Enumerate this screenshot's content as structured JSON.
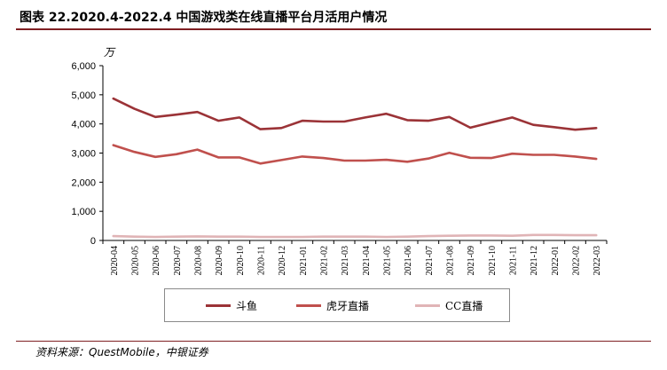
{
  "header": {
    "title": "图表 22.2020.4-2022.4 中国游戏类在线直播平台月活用户情况"
  },
  "footer": {
    "source": "资料来源：QuestMobile，中银证券"
  },
  "colors": {
    "douyu": "#9b3337",
    "huya": "#c0504d",
    "cc": "#e0b4b6",
    "accent": "#7f1f22"
  },
  "chart_data": {
    "type": "line",
    "unit": "万",
    "categories": [
      "2020-04",
      "2020-05",
      "2020-06",
      "2020-07",
      "2020-08",
      "2020-09",
      "2020-10",
      "2020-11",
      "2020-12",
      "2021-01",
      "2021-02",
      "2021-03",
      "2021-04",
      "2021-05",
      "2021-06",
      "2021-07",
      "2021-08",
      "2021-09",
      "2021-10",
      "2021-11",
      "2021-12",
      "2022-01",
      "2022-02",
      "2022-03"
    ],
    "ylim": [
      0,
      6000
    ],
    "yticks": [
      "0",
      "1,000",
      "2,000",
      "3,000",
      "4,000",
      "5,000",
      "6,000"
    ],
    "grid": false,
    "legend_position": "bottom",
    "series": [
      {
        "name": "斗鱼",
        "color": "#9b3337",
        "values": [
          4870,
          4520,
          4240,
          4320,
          4410,
          4110,
          4220,
          3820,
          3860,
          4110,
          4080,
          4080,
          4220,
          4350,
          4130,
          4110,
          4240,
          3870,
          4050,
          4220,
          3970,
          3890,
          3800,
          3860
        ]
      },
      {
        "name": "虎牙直播",
        "color": "#c0504d",
        "values": [
          3270,
          3040,
          2870,
          2960,
          3120,
          2850,
          2850,
          2640,
          2760,
          2880,
          2830,
          2740,
          2740,
          2770,
          2700,
          2810,
          3010,
          2840,
          2830,
          2980,
          2940,
          2940,
          2880,
          2800
        ]
      },
      {
        "name": "CC直播",
        "color": "#e0b4b6",
        "values": [
          150,
          130,
          120,
          130,
          140,
          130,
          130,
          120,
          120,
          120,
          130,
          130,
          130,
          120,
          130,
          150,
          160,
          170,
          170,
          160,
          190,
          190,
          180,
          180
        ]
      }
    ]
  }
}
